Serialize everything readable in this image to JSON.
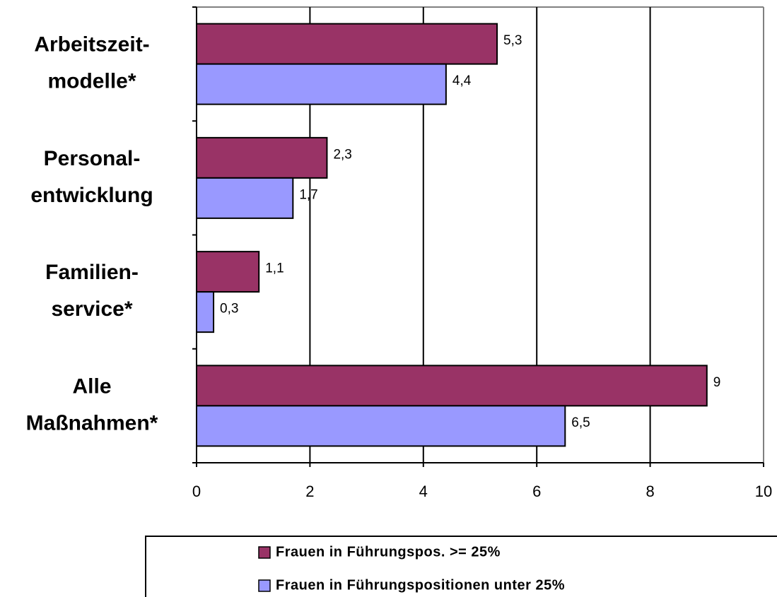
{
  "chart_data": {
    "type": "bar",
    "orientation": "horizontal",
    "categories": [
      [
        "Arbeitszeit-",
        "modelle*"
      ],
      [
        "Personal-",
        "entwicklung"
      ],
      [
        "Familien-",
        "service*"
      ],
      [
        "Alle",
        "Maßnahmen*"
      ]
    ],
    "series": [
      {
        "name": "Frauen in Führungspos. >= 25%",
        "color": "#993366",
        "values": [
          5.3,
          2.3,
          1.1,
          9
        ],
        "value_labels": [
          "5,3",
          "2,3",
          "1,1",
          "9"
        ]
      },
      {
        "name": "Frauen in Führungspositionen unter 25%",
        "color": "#9999ff",
        "values": [
          4.4,
          1.7,
          0.3,
          6.5
        ],
        "value_labels": [
          "4,4",
          "1,7",
          "0,3",
          "6,5"
        ]
      }
    ],
    "xlim": [
      0,
      10
    ],
    "xticks": [
      0,
      2,
      4,
      6,
      8,
      10
    ],
    "grid": true,
    "legend": "bottom"
  }
}
